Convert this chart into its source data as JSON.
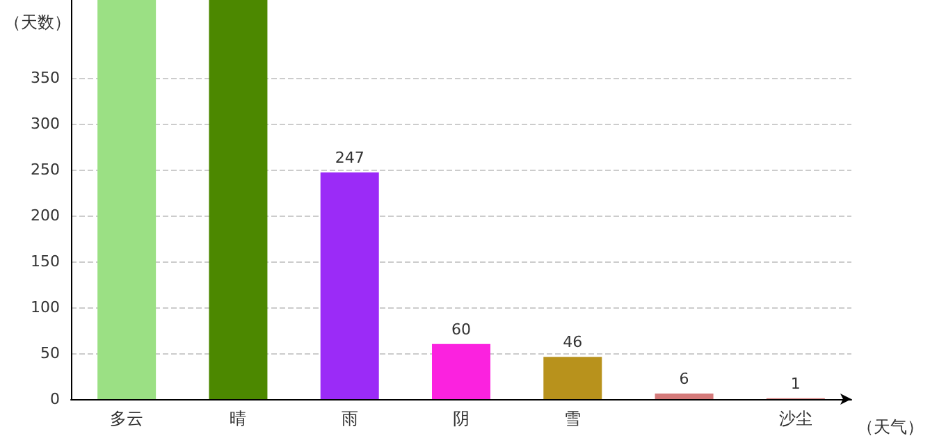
{
  "chart_data": {
    "type": "bar",
    "ylabel": "（天数）",
    "xlabel": "（天气）",
    "categories": [
      "多云",
      "晴",
      "雨",
      "阴",
      "雪",
      null,
      "沙尘"
    ],
    "values": [
      435,
      435,
      247,
      60,
      46,
      6,
      1
    ],
    "colors": [
      "#9be084",
      "#4c8800",
      "#9b2bf7",
      "#fb22df",
      "#b8921c",
      "#d47a7a",
      "#d47a7a"
    ],
    "value_labels": [
      null,
      null,
      "247",
      "60",
      "46",
      "6",
      "1"
    ],
    "ylim": [
      0,
      435
    ],
    "yticks": [
      0,
      50,
      100,
      150,
      200,
      250,
      300,
      350
    ],
    "grid": "y"
  }
}
